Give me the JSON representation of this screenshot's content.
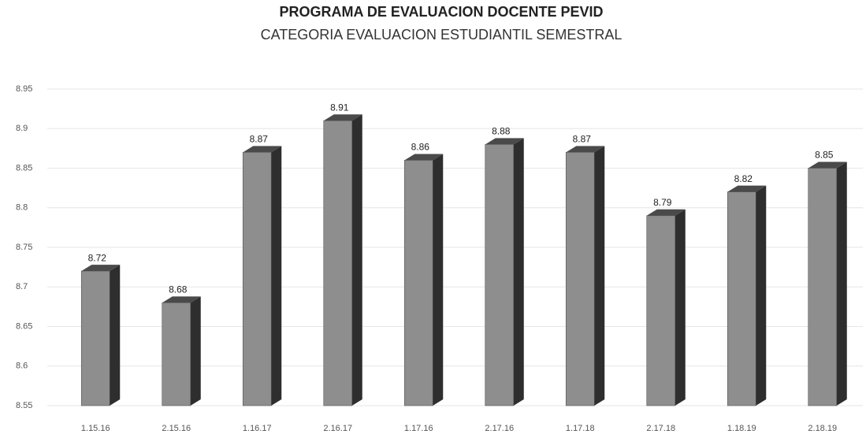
{
  "chart_data": {
    "type": "bar3d",
    "title": "PROGRAMA DE EVALUACION DOCENTE PEVID",
    "subtitle": "CATEGORIA EVALUACION ESTUDIANTIL SEMESTRAL",
    "categories": [
      "1.15.16",
      "2.15.16",
      "1.16.17",
      "2.16.17",
      "1.17.16",
      "2.17.16",
      "1.17.18",
      "2.17.18",
      "1.18.19",
      "2.18.19"
    ],
    "values": [
      8.72,
      8.68,
      8.87,
      8.91,
      8.86,
      8.88,
      8.87,
      8.79,
      8.82,
      8.85
    ],
    "color": "#8e8e8e",
    "ylim": [
      8.55,
      8.95
    ],
    "yticks": [
      8.55,
      8.6,
      8.65,
      8.7,
      8.75,
      8.8,
      8.85,
      8.9,
      8.95
    ],
    "grid": true
  }
}
